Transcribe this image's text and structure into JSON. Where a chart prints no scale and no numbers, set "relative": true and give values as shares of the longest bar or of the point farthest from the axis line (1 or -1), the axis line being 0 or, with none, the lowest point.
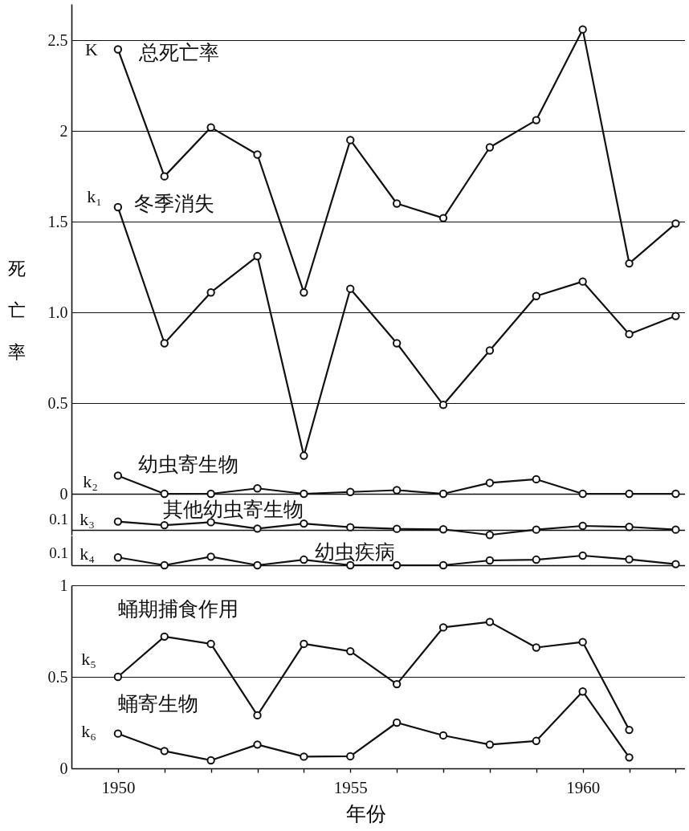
{
  "chart_data": [
    {
      "type": "line",
      "x": [
        1950,
        1951,
        1952,
        1953,
        1954,
        1955,
        1956,
        1957,
        1958,
        1959,
        1960,
        1961,
        1962
      ],
      "xlim": [
        1949,
        1962.2
      ],
      "ylim": [
        0,
        2.7
      ],
      "yticks": [
        0,
        0.5,
        {
          "value": 1,
          "label": "1.0"
        },
        1.5,
        2,
        2.5
      ],
      "ylabel": "死亡率",
      "grid": "y",
      "tick_labels": "y",
      "marker": "circle",
      "line_style": "solid",
      "series": [
        {
          "name": "总死亡率",
          "color": "#111111",
          "values": [
            2.45,
            1.75,
            2.02,
            1.87,
            1.11,
            1.95,
            1.6,
            1.52,
            1.91,
            2.06,
            2.56,
            1.27,
            1.49
          ]
        },
        {
          "name": "冬季消失",
          "color": "#111111",
          "values": [
            1.58,
            0.83,
            1.11,
            1.31,
            0.21,
            1.13,
            0.83,
            0.49,
            0.79,
            1.09,
            1.17,
            0.88,
            0.98
          ]
        },
        {
          "name": "幼虫寄生物",
          "color": "#111111",
          "values": [
            0.1,
            0,
            0,
            0.03,
            0,
            0.01,
            0.02,
            0,
            0.06,
            0.08,
            0,
            0,
            0
          ]
        }
      ],
      "annotations": [
        "K",
        "k₁",
        "k₂"
      ]
    },
    {
      "type": "line",
      "relative": true,
      "x": [
        1950,
        1951,
        1952,
        1953,
        1954,
        1955,
        1956,
        1957,
        1958,
        1959,
        1960,
        1961,
        1962
      ],
      "xlim": [
        1949,
        1962.2
      ],
      "tick_labels": false,
      "marker": "circle",
      "line_style": "solid",
      "series": [
        {
          "name": "其他幼虫寄生物",
          "color": "#111111",
          "values": [
            1,
            0.57,
            0.92,
            0.16,
            0.76,
            0.32,
            0.13,
            0.07,
            -0.6,
            0.03,
            0.48,
            0.36,
            0.03
          ]
        }
      ],
      "annotations": [
        "0.1",
        "k₃"
      ]
    },
    {
      "type": "line",
      "relative": true,
      "x": [
        1950,
        1951,
        1952,
        1953,
        1954,
        1955,
        1956,
        1957,
        1958,
        1959,
        1960,
        1961,
        1962
      ],
      "xlim": [
        1949,
        1962.2
      ],
      "tick_labels": false,
      "marker": "circle",
      "line_style": "solid",
      "series": [
        {
          "name": "幼虫疾病",
          "color": "#111111",
          "values": [
            0.81,
            0,
            0.89,
            0,
            0.58,
            0,
            0,
            0,
            0.5,
            0.58,
            1,
            0.61,
            0.12
          ]
        }
      ],
      "annotations": [
        "0.1",
        "k₄"
      ]
    },
    {
      "type": "line",
      "x": [
        1950,
        1951,
        1952,
        1953,
        1954,
        1955,
        1956,
        1957,
        1958,
        1959,
        1960,
        1961
      ],
      "xlim": [
        1949,
        1962.2
      ],
      "xticks": [
        1950,
        {
          "value": 1951,
          "label": null
        },
        {
          "value": 1952,
          "label": null
        },
        {
          "value": 1953,
          "label": null
        },
        {
          "value": 1954,
          "label": null
        },
        1955,
        {
          "value": 1956,
          "label": null
        },
        {
          "value": 1957,
          "label": null
        },
        {
          "value": 1958,
          "label": null
        },
        {
          "value": 1959,
          "label": null
        },
        1960,
        {
          "value": 1961,
          "label": null
        },
        {
          "value": 1962,
          "label": null
        }
      ],
      "ylim": [
        0,
        1
      ],
      "yticks": [
        0,
        0.5,
        1
      ],
      "xlabel": "年份",
      "grid": "y",
      "marker": "circle",
      "line_style": "solid",
      "series": [
        {
          "name": "蛹期捕食作用",
          "color": "#111111",
          "values": [
            0.5,
            0.72,
            0.68,
            0.29,
            0.68,
            0.64,
            0.46,
            0.77,
            0.8,
            0.66,
            0.69,
            0.21
          ]
        },
        {
          "name": "蛹寄生物",
          "color": "#111111",
          "values": [
            0.19,
            0.095,
            0.044,
            0.13,
            0.064,
            0.066,
            0.25,
            0.18,
            0.13,
            0.15,
            0.42,
            0.06
          ]
        }
      ],
      "annotations": [
        "k₅",
        "k₆"
      ]
    }
  ]
}
